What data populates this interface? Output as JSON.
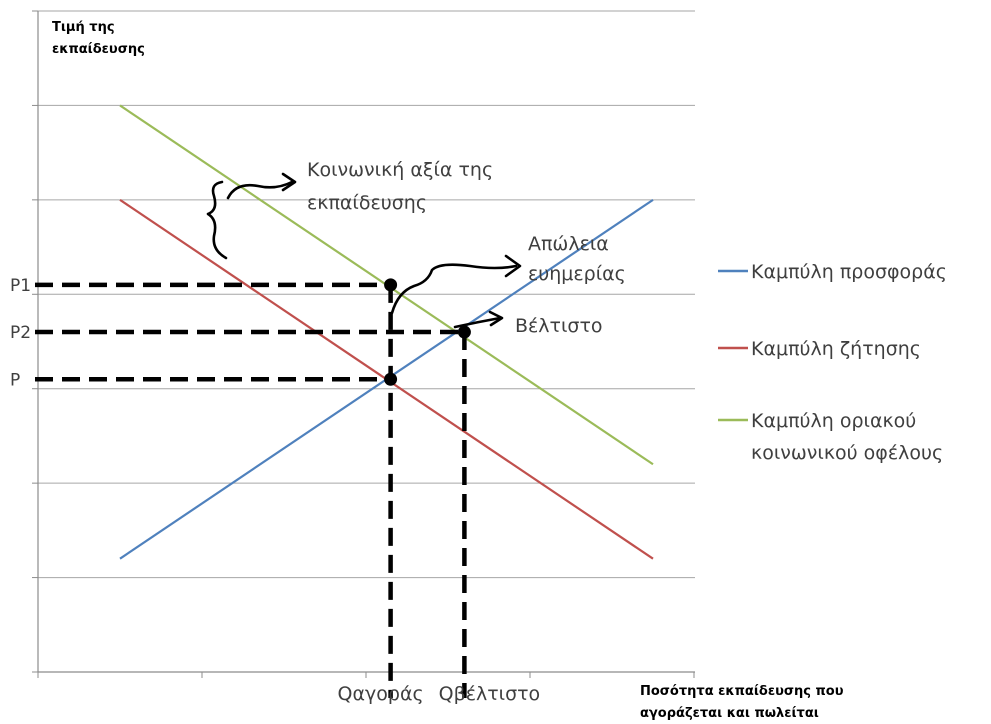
{
  "chart_data": {
    "type": "line",
    "y_title_lines": [
      "Τιμή της",
      "εκπαίδευσης"
    ],
    "x_title_lines": [
      "Ποσότητα εκπαίδευσης που",
      "αγοράζεται και πωλείται"
    ],
    "xlim": [
      0,
      10
    ],
    "ylim": [
      0,
      7
    ],
    "gridlines_y": [
      1,
      2,
      3,
      4,
      5,
      6,
      7
    ],
    "grid": true,
    "series": [
      {
        "name": "Καμπύλη προσφοράς",
        "color": "#4f81bd",
        "x": [
          1,
          7.5
        ],
        "y": [
          1.2,
          5
        ]
      },
      {
        "name": "Καμπύλη ζήτησης",
        "color": "#c0504d",
        "x": [
          1,
          7.5
        ],
        "y": [
          5,
          1.2
        ]
      },
      {
        "name_lines": [
          "Καμπύλη οριακού",
          "κοινωνικού οφέλους"
        ],
        "color": "#9bbb59",
        "x": [
          1,
          7.5
        ],
        "y": [
          6,
          2.2
        ]
      }
    ],
    "points": [
      {
        "label": "P1",
        "x": 4.3,
        "y": 4.1
      },
      {
        "label": "P2",
        "x": 5.2,
        "y": 3.6
      },
      {
        "label": "P",
        "x": 4.3,
        "y": 3.1
      }
    ],
    "x_markers": [
      {
        "label": "Qαγοράς",
        "x": 4.3
      },
      {
        "label": "Qβέλτιστο",
        "x": 5.2
      }
    ],
    "annotations": {
      "social_value_lines": [
        "Κοινωνική αξία της",
        "εκπαίδευσης"
      ],
      "welfare_loss_lines": [
        "Απώλεια",
        "ευημερίας"
      ],
      "optimum": "Βέλτιστο"
    },
    "legend_position": "right"
  }
}
